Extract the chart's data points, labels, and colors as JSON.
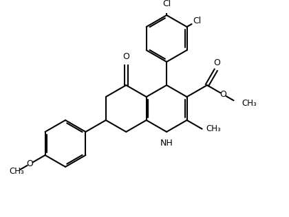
{
  "bg_color": "#ffffff",
  "line_color": "#000000",
  "line_width": 1.5,
  "font_size": 9,
  "figsize": [
    4.2,
    3.16
  ],
  "dpi": 100,
  "BL": 0.92,
  "xlim": [
    0,
    10
  ],
  "ylim": [
    0,
    8
  ]
}
